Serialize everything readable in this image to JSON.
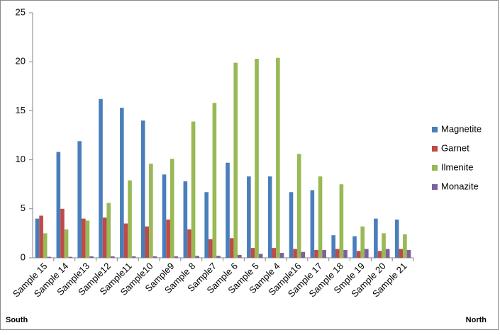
{
  "chart_data": {
    "type": "bar",
    "categories": [
      "Sample 15",
      "Sample 14",
      "Sample13",
      "Sample12",
      "Sample11",
      "Sample10",
      "Sample9",
      "Sample 8",
      "Sample7",
      "Sample 6",
      "Sample 5",
      "Sample 4",
      "Sample16",
      "Sample 17",
      "Sample 18",
      "Smple 19",
      "Sample 20",
      "Sample 21"
    ],
    "series": [
      {
        "name": "Magnetite",
        "color": "#4a7ebb",
        "values": [
          4,
          10.8,
          11.9,
          16.2,
          15.3,
          14,
          8.5,
          7.8,
          6.7,
          9.7,
          8.3,
          8.3,
          6.7,
          6.9,
          2.3,
          2.2,
          4,
          3.9
        ]
      },
      {
        "name": "Garnet",
        "color": "#be4b48",
        "values": [
          4.3,
          5,
          4,
          4.1,
          3.5,
          3.2,
          3.9,
          2.9,
          1.9,
          2,
          1,
          1,
          0.9,
          0.8,
          0.9,
          0.7,
          0.7,
          0.9
        ]
      },
      {
        "name": "Ilmenite",
        "color": "#98b954",
        "values": [
          2.5,
          2.9,
          3.8,
          5.6,
          7.9,
          9.6,
          10.1,
          13.9,
          15.8,
          19.9,
          20.3,
          20.4,
          10.6,
          8.3,
          7.5,
          3.2,
          2.5,
          2.4
        ]
      },
      {
        "name": "Monazite",
        "color": "#7d60a0",
        "values": [
          0.1,
          0.1,
          0.15,
          0.15,
          0.15,
          0.15,
          0.15,
          0.2,
          0.2,
          0.3,
          0.4,
          0.5,
          0.6,
          0.8,
          0.8,
          0.9,
          0.9,
          0.8
        ]
      }
    ],
    "ylim": [
      0,
      25
    ],
    "yticks": [
      0,
      5,
      10,
      15,
      20,
      25
    ],
    "grid": false,
    "legend": "right",
    "annotations": [
      "South",
      "North"
    ]
  }
}
